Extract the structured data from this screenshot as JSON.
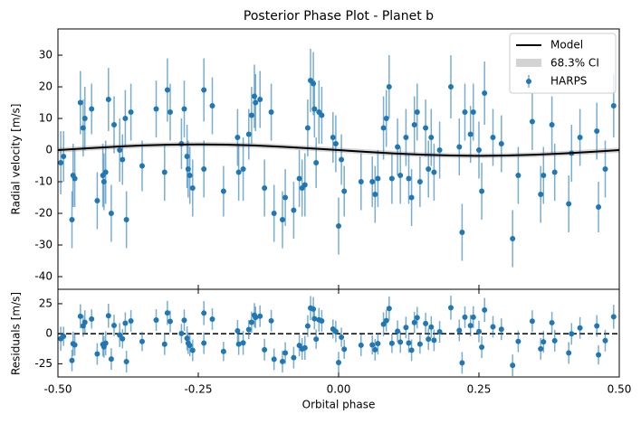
{
  "chart_data": [
    {
      "type": "scatter",
      "title": "Posterior Phase Plot - Planet b",
      "ylabel": "Radial velocity [m/s]",
      "xlim": [
        -0.5,
        0.5
      ],
      "ylim": [
        -44,
        38.3
      ],
      "yticks": [
        -40,
        -30,
        -20,
        -10,
        0,
        10,
        20,
        30
      ],
      "legend": "upper right",
      "series": [
        {
          "name": "HARPS",
          "color": "#1f77b4",
          "x": [
            -0.495,
            -0.49,
            -0.475,
            -0.473,
            -0.47,
            -0.46,
            -0.455,
            -0.452,
            -0.44,
            -0.43,
            -0.42,
            -0.418,
            -0.415,
            -0.41,
            -0.405,
            -0.4,
            -0.39,
            -0.385,
            -0.38,
            -0.378,
            -0.37,
            -0.35,
            -0.325,
            -0.31,
            -0.305,
            -0.3,
            -0.28,
            -0.275,
            -0.27,
            -0.268,
            -0.265,
            -0.26,
            -0.24,
            -0.24,
            -0.225,
            -0.205,
            -0.18,
            -0.178,
            -0.17,
            -0.16,
            -0.155,
            -0.15,
            -0.148,
            -0.14,
            -0.132,
            -0.12,
            -0.115,
            -0.1,
            -0.095,
            -0.08,
            -0.07,
            -0.065,
            -0.06,
            -0.055,
            -0.05,
            -0.045,
            -0.043,
            -0.04,
            -0.035,
            -0.03,
            -0.01,
            -0.005,
            0,
            0.005,
            0.01,
            0.04,
            0.06,
            0.065,
            0.07,
            0.08,
            0.085,
            0.09,
            0.095,
            0.105,
            0.11,
            0.12,
            0.125,
            0.13,
            0.135,
            0.14,
            0.145,
            0.155,
            0.16,
            0.165,
            0.17,
            0.18,
            0.2,
            0.215,
            0.22,
            0.225,
            0.235,
            0.24,
            0.25,
            0.255,
            0.26,
            0.275,
            0.29,
            0.31,
            0.32,
            0.345,
            0.36,
            0.365,
            0.38,
            0.385,
            0.41,
            0.415,
            0.43,
            0.46,
            0.463,
            0.475,
            0.49
          ],
          "values": [
            -4,
            -2,
            -22,
            -8,
            -9,
            15,
            7,
            10,
            13,
            -16,
            -8,
            -10,
            -7,
            16,
            -20,
            8,
            0,
            -3,
            10,
            -22,
            12,
            -5,
            13,
            -7,
            19,
            12,
            2,
            13,
            -2,
            -6,
            -8,
            -12,
            19,
            -6,
            14,
            -13,
            4,
            -7,
            -6,
            5,
            11,
            17,
            15,
            16,
            -12,
            12,
            -20,
            -22,
            -15,
            -19,
            -9,
            -12,
            -11,
            7,
            22,
            21,
            13,
            -4,
            12,
            11,
            4,
            2,
            -24,
            -3,
            -13,
            -10,
            -10,
            -14,
            -9,
            7,
            10,
            20,
            -9,
            1,
            -8,
            4,
            -9,
            -15,
            8,
            12,
            -10,
            7,
            -6,
            4,
            -7,
            0,
            20,
            1,
            -26,
            12,
            5,
            12,
            0,
            -13,
            18,
            4,
            2,
            -28,
            -8,
            9,
            -14,
            -8,
            8,
            -7,
            -17,
            -1,
            4,
            6,
            -18,
            -6,
            14
          ],
          "errors": [
            10,
            8,
            9,
            10,
            9,
            10,
            9,
            10,
            8,
            9,
            10,
            9,
            10,
            10,
            9,
            9,
            10,
            8,
            9,
            9,
            9,
            8,
            9,
            9,
            10,
            9,
            8,
            9,
            10,
            9,
            9,
            9,
            10,
            9,
            9,
            8,
            9,
            9,
            10,
            8,
            9,
            10,
            9,
            9,
            9,
            9,
            9,
            9,
            9,
            9,
            9,
            9,
            10,
            9,
            10,
            10,
            9,
            8,
            10,
            9,
            8,
            9,
            9,
            8,
            8,
            9,
            8,
            9,
            9,
            10,
            9,
            10,
            8,
            9,
            9,
            9,
            8,
            9,
            9,
            9,
            8,
            9,
            9,
            9,
            9,
            9,
            10,
            9,
            9,
            9,
            9,
            9,
            9,
            9,
            10,
            9,
            9,
            9,
            9,
            9,
            9,
            9,
            9,
            9,
            9,
            9,
            9,
            9,
            8,
            9,
            10
          ]
        }
      ],
      "model": {
        "name": "Model",
        "color": "#000000",
        "x": [
          -0.5,
          -0.45,
          -0.4,
          -0.35,
          -0.3,
          -0.25,
          -0.2,
          -0.15,
          -0.1,
          -0.05,
          0,
          0.05,
          0.1,
          0.15,
          0.2,
          0.25,
          0.3,
          0.35,
          0.4,
          0.45,
          0.5
        ],
        "values": [
          0,
          0.56,
          1.06,
          1.46,
          1.71,
          1.8,
          1.71,
          1.46,
          1.06,
          0.56,
          0,
          -0.56,
          -1.06,
          -1.46,
          -1.71,
          -1.8,
          -1.71,
          -1.46,
          -1.06,
          -0.56,
          0
        ]
      },
      "band": {
        "name": "68.3% CI",
        "color": "#d3d3d3",
        "lower": [
          -0.8,
          -0.24,
          0.26,
          0.66,
          0.91,
          1.0,
          0.91,
          0.66,
          0.26,
          -0.24,
          -0.8,
          -1.36,
          -1.86,
          -2.26,
          -2.51,
          -2.6,
          -2.51,
          -2.26,
          -1.86,
          -1.36,
          -0.8
        ],
        "upper": [
          0.8,
          1.36,
          1.86,
          2.26,
          2.51,
          2.6,
          2.51,
          2.26,
          1.86,
          1.36,
          0.8,
          0.24,
          -0.26,
          -0.66,
          -0.91,
          -1.0,
          -0.91,
          -0.66,
          -0.26,
          0.24,
          0.8
        ]
      }
    },
    {
      "type": "scatter",
      "ylabel": "Residuals [m/s]",
      "xlabel": "Orbital phase",
      "xlim": [
        -0.5,
        0.5
      ],
      "ylim": [
        -36,
        37
      ],
      "yticks": [
        -25,
        0,
        25
      ],
      "xticks": [
        {
          "value": -0.5,
          "label": "-0.50"
        },
        {
          "value": -0.25,
          "label": "-0.25"
        },
        {
          "value": 0,
          "label": "0.00"
        },
        {
          "value": 0.25,
          "label": "0.25"
        },
        {
          "value": 0.5,
          "label": "0.50"
        }
      ],
      "zero_line": true,
      "series": [
        {
          "color": "#1f77b4",
          "values": [
            -4.1,
            -2.1,
            -22.3,
            -8.3,
            -9.3,
            14.5,
            6.5,
            9.5,
            12.3,
            -16.8,
            -8.9,
            -10.9,
            -7.9,
            15,
            -21,
            6.9,
            -1.1,
            -4.2,
            8.8,
            -23.2,
            10.7,
            -6.5,
            11.4,
            -8.7,
            17.3,
            10.3,
            0.2,
            11.2,
            -3.8,
            -7.8,
            -9.8,
            -13.8,
            17.2,
            -7.8,
            12.2,
            -14.7,
            2.4,
            -8.6,
            -7.6,
            3.5,
            9.5,
            15.5,
            13.6,
            14.6,
            -13.3,
            10.8,
            -21.2,
            -23.1,
            -16,
            -19.9,
            -9.8,
            -12.7,
            -11.7,
            6.4,
            21.4,
            20.5,
            12.5,
            -4.5,
            11.6,
            10.7,
            3.9,
            1.9,
            -24,
            -2.9,
            -12.9,
            -9.6,
            -9.3,
            -13.3,
            -8.2,
            7.9,
            10.9,
            21,
            -8,
            2.1,
            -6.9,
            5.2,
            -7.7,
            -13.7,
            9.3,
            13.4,
            -8.6,
            8.5,
            -4.5,
            5.6,
            -5.4,
            1.6,
            21.7,
            2.8,
            -24.2,
            13.8,
            6.8,
            13.8,
            1.8,
            -11.2,
            19.8,
            5.8,
            3.7,
            -26.3,
            -6.4,
            10.5,
            -12.6,
            -6.7,
            9.2,
            -5.8,
            -16,
            -0.1,
            4.8,
            6.5,
            -17.6,
            -5.7,
            14.1
          ]
        }
      ]
    }
  ]
}
